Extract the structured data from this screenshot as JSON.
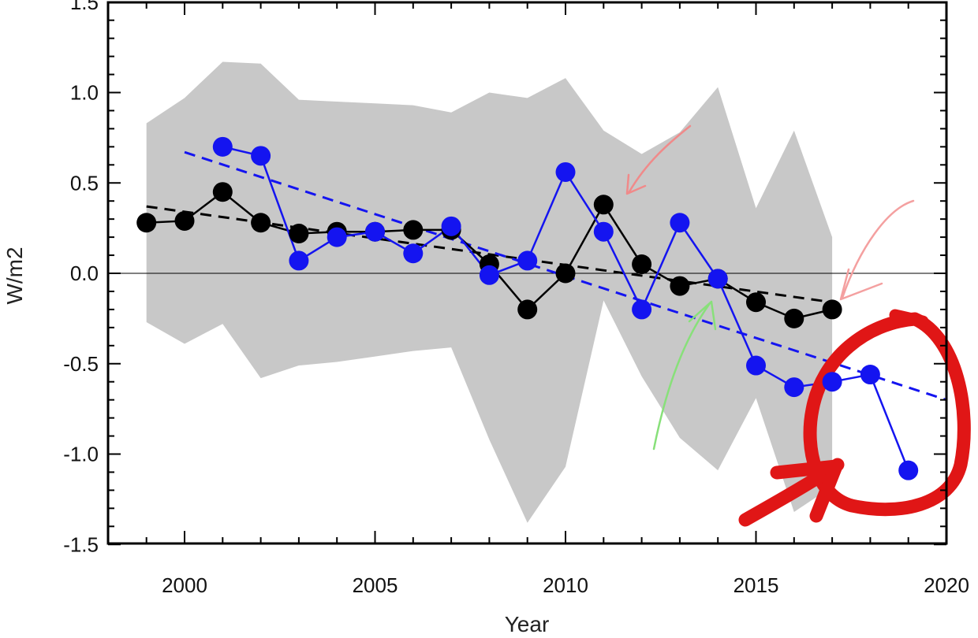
{
  "chart_data": {
    "type": "line",
    "xlabel": "Year",
    "ylabel": "W/m2",
    "xlim": [
      1998,
      2020
    ],
    "ylim": [
      -1.5,
      1.5
    ],
    "xticks": [
      2000,
      2005,
      2010,
      2015,
      2020
    ],
    "xtick_labels": [
      "2000",
      "2005",
      "2010",
      "2015",
      "2020"
    ],
    "yticks": [
      1.5,
      1.0,
      0.5,
      0.0,
      -0.5,
      -1.0,
      -1.5
    ],
    "ytick_labels": [
      "1.5",
      "1.0",
      "0.5",
      "0.0",
      "-0.5",
      "-1.0",
      "-1.5"
    ],
    "grid": false,
    "zero_line": true,
    "band": {
      "color": "#c8c8c8",
      "x": [
        1999,
        2000,
        2001,
        2002,
        2003,
        2004,
        2005,
        2006,
        2007,
        2008,
        2009,
        2010,
        2011,
        2012,
        2013,
        2014,
        2015,
        2016,
        2017
      ],
      "upper": [
        0.83,
        0.97,
        1.17,
        1.16,
        0.96,
        0.95,
        0.94,
        0.93,
        0.89,
        1.0,
        0.97,
        1.08,
        0.79,
        0.66,
        0.78,
        1.03,
        0.36,
        0.79,
        0.2
      ],
      "lower": [
        -0.27,
        -0.39,
        -0.28,
        -0.58,
        -0.51,
        -0.49,
        -0.46,
        -0.43,
        -0.41,
        -0.92,
        -1.38,
        -1.07,
        -0.15,
        -0.57,
        -0.91,
        -1.09,
        -0.69,
        -1.32,
        -1.18
      ]
    },
    "series": [
      {
        "color": "#000000",
        "x": [
          1999,
          2000,
          2001,
          2002,
          2003,
          2004,
          2005,
          2006,
          2007,
          2008,
          2009,
          2010,
          2011,
          2012,
          2013,
          2014,
          2015,
          2016,
          2017
        ],
        "values": [
          0.28,
          0.29,
          0.45,
          0.28,
          0.22,
          0.23,
          0.23,
          0.24,
          0.24,
          0.05,
          -0.2,
          0.0,
          0.38,
          0.05,
          -0.07,
          -0.03,
          -0.16,
          -0.25,
          -0.2
        ],
        "trend": [
          [
            1999,
            0.37
          ],
          [
            2017,
            -0.16
          ]
        ]
      },
      {
        "color": "#1414f0",
        "x": [
          2001,
          2002,
          2003,
          2004,
          2005,
          2006,
          2007,
          2008,
          2009,
          2010,
          2011,
          2012,
          2013,
          2014,
          2015,
          2016,
          2017,
          2018,
          2019
        ],
        "values": [
          0.7,
          0.65,
          0.07,
          0.2,
          0.23,
          0.11,
          0.26,
          -0.01,
          0.07,
          0.56,
          0.23,
          -0.2,
          0.28,
          -0.03,
          -0.51,
          -0.63,
          -0.6,
          -0.56,
          -1.09
        ],
        "trend": [
          [
            2000,
            0.67
          ],
          [
            2020,
            -0.7
          ]
        ]
      }
    ]
  }
}
